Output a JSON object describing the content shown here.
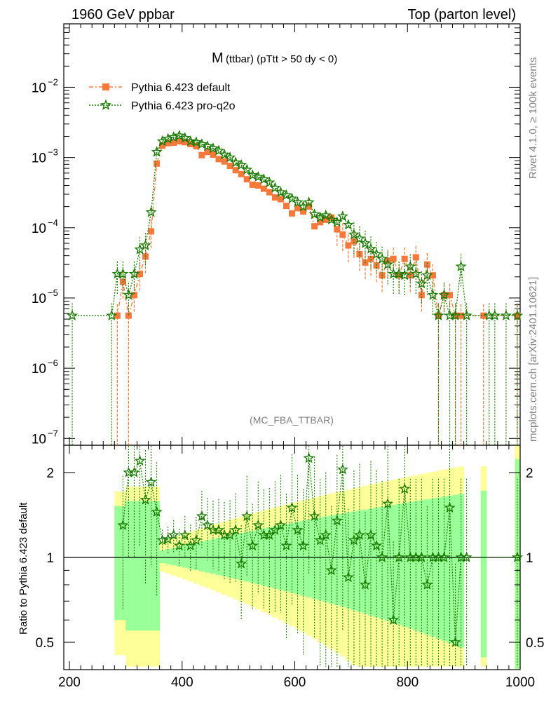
{
  "header": {
    "left": "1960 GeV ppbar",
    "right": "Top (parton level)"
  },
  "side": {
    "rivet": "Rivet 4.1.0, ≥ 100k events",
    "mcplots": "mcplots.cern.ch [arXiv:2401.10621]"
  },
  "plot": {
    "title_main": "M",
    "title_sub": "(ttbar) (pTtt > 50 dy < 0)",
    "watermark": "(MC_FBA_TTBAR)",
    "ratio_ylabel": "Ratio to Pythia 6.423 default"
  },
  "legend": {
    "items": [
      {
        "label": "Pythia 6.423 default",
        "color": "#f5793a",
        "marker": "square"
      },
      {
        "label": "Pythia 6.423 pro-q2o",
        "color": "#1a7a00",
        "marker": "star"
      }
    ]
  },
  "colors": {
    "band_green": "#99ff99",
    "band_yellow": "#ffff99"
  },
  "chart_data": [
    {
      "type": "line",
      "title": "M (ttbar) (pTtt > 50 dy < 0)",
      "xlabel": "",
      "ylabel": "",
      "xlim": [
        190,
        1000
      ],
      "ylim": [
        8e-08,
        0.08
      ],
      "yscale": "log",
      "x_ticks": [
        "200",
        "400",
        "600",
        "800",
        "1000"
      ],
      "y_ticks": [
        "10^-7",
        "10^-6",
        "10^-5",
        "10^-4",
        "10^-3",
        "10^-2"
      ],
      "series": [
        {
          "name": "Pythia 6.423 default",
          "x": [
            285,
            295,
            305,
            315,
            325,
            335,
            345,
            355,
            365,
            375,
            385,
            395,
            405,
            415,
            425,
            435,
            445,
            455,
            465,
            475,
            485,
            495,
            505,
            515,
            525,
            535,
            545,
            555,
            565,
            575,
            585,
            595,
            605,
            615,
            625,
            635,
            645,
            655,
            665,
            675,
            685,
            695,
            705,
            715,
            725,
            735,
            745,
            755,
            765,
            775,
            785,
            795,
            805,
            815,
            825,
            835,
            845,
            855,
            865,
            875,
            885,
            895,
            935,
            995
          ],
          "values": [
            5.6e-06,
            1.7e-05,
            5.6e-06,
            1.1e-05,
            2.2e-05,
            3.9e-05,
            8.9e-05,
            0.00082,
            0.00148,
            0.0016,
            0.00162,
            0.0017,
            0.00165,
            0.00155,
            0.00145,
            0.00108,
            0.0012,
            0.0011,
            0.00095,
            0.00088,
            0.00076,
            0.00066,
            0.00058,
            0.00049,
            0.00041,
            0.0004,
            0.00036,
            0.00032,
            0.00027,
            0.000255,
            0.000205,
            0.00016,
            0.00019,
            0.00017,
            0.0002,
            0.000105,
            0.00012,
            0.00013,
            0.00014,
            9.5e-05,
            8e-05,
            5.6e-05,
            6.4e-05,
            4.2e-05,
            3.2e-05,
            3.6e-05,
            2.9e-05,
            2.1e-05,
            3.4e-05,
            3.6e-05,
            2.1e-05,
            3.6e-05,
            2.1e-05,
            3.8e-05,
            1.1e-05,
            3e-05,
            2.1e-05,
            5.6e-06,
            1.1e-05,
            1.1e-05,
            5.6e-06,
            5.6e-06,
            5.6e-06,
            5.6e-06
          ]
        },
        {
          "name": "Pythia 6.423 pro-q2o",
          "x": [
            205,
            275,
            285,
            295,
            305,
            315,
            325,
            335,
            345,
            355,
            365,
            375,
            385,
            395,
            405,
            415,
            425,
            435,
            445,
            455,
            465,
            475,
            485,
            495,
            505,
            515,
            525,
            535,
            545,
            555,
            565,
            575,
            585,
            595,
            605,
            615,
            625,
            635,
            645,
            655,
            665,
            675,
            685,
            695,
            705,
            715,
            725,
            735,
            745,
            755,
            765,
            775,
            785,
            795,
            805,
            815,
            825,
            835,
            845,
            855,
            865,
            875,
            885,
            895,
            905,
            945,
            955,
            975,
            995
          ],
          "values": [
            5.6e-06,
            5.6e-06,
            2.2e-05,
            2.2e-05,
            1.1e-05,
            2.2e-05,
            4.9e-05,
            5.6e-05,
            0.000166,
            0.0012,
            0.0017,
            0.00185,
            0.00195,
            0.00205,
            0.0019,
            0.0017,
            0.00165,
            0.00155,
            0.00145,
            0.00135,
            0.00125,
            0.0011,
            0.001,
            0.00085,
            0.00078,
            0.00067,
            0.00056,
            0.00053,
            0.00049,
            0.00044,
            0.00037,
            0.00032,
            0.00029,
            0.00026,
            0.00023,
            0.0002,
            0.00023,
            0.000155,
            0.00014,
            0.00015,
            0.00013,
            0.00012,
            0.000145,
            0.00011,
            8e-05,
            7e-05,
            6e-05,
            5e-05,
            4.2e-05,
            3.6e-05,
            3e-05,
            2.2e-05,
            2.2e-05,
            2.1e-05,
            2.8e-05,
            2.2e-05,
            1.6e-05,
            2.1e-05,
            1.1e-05,
            5.6e-06,
            1.1e-05,
            5.6e-06,
            5.6e-06,
            2.8e-05,
            5.6e-06,
            5.6e-06,
            5.6e-06,
            5.6e-06,
            5.6e-06
          ]
        }
      ]
    },
    {
      "type": "line",
      "title": "",
      "xlabel": "",
      "ylabel": "Ratio to Pythia 6.423 default",
      "xlim": [
        190,
        1000
      ],
      "ylim": [
        0.4,
        2.5
      ],
      "yscale": "log",
      "x_ticks": [
        "200",
        "400",
        "600",
        "800",
        "1000"
      ],
      "y_ticks": [
        "0.5",
        "1",
        "2"
      ],
      "reference_line": 1,
      "series": [
        {
          "name": "Pythia 6.423 pro-q2o / Pythia 6.423 default",
          "x": [
            295,
            305,
            315,
            325,
            335,
            345,
            355,
            365,
            375,
            385,
            395,
            405,
            415,
            425,
            435,
            445,
            455,
            465,
            475,
            485,
            495,
            505,
            515,
            525,
            535,
            545,
            555,
            565,
            575,
            585,
            595,
            605,
            615,
            625,
            635,
            645,
            655,
            665,
            675,
            685,
            695,
            705,
            715,
            725,
            735,
            745,
            755,
            765,
            775,
            785,
            795,
            805,
            815,
            825,
            835,
            845,
            855,
            865,
            875,
            885,
            895,
            905,
            995
          ],
          "values": [
            1.3,
            2.0,
            2.0,
            2.2,
            1.6,
            1.85,
            1.45,
            1.15,
            1.16,
            1.2,
            1.1,
            1.2,
            1.1,
            1.15,
            1.4,
            1.3,
            1.25,
            1.25,
            1.2,
            1.2,
            1.25,
            0.95,
            1.4,
            1.1,
            1.3,
            1.2,
            1.2,
            1.25,
            1.3,
            1.1,
            1.5,
            1.25,
            1.1,
            2.25,
            1.4,
            1.15,
            1.2,
            0.9,
            1.35,
            2.05,
            0.85,
            1.15,
            1.2,
            0.8,
            1.2,
            1.1,
            1.0,
            1.55,
            0.6,
            1.0,
            1.75,
            1.0,
            1.0,
            1.0,
            0.8,
            1.0,
            1.0,
            1.0,
            1.5,
            0.5,
            1.0,
            1.0,
            1.0
          ]
        }
      ]
    }
  ]
}
